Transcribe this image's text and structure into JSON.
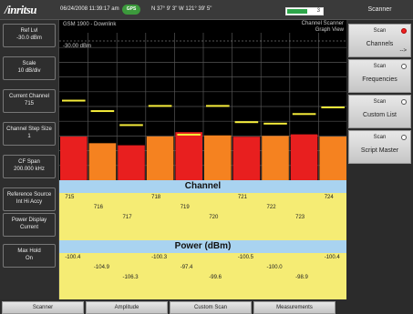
{
  "status": {
    "brand": "/inritsu",
    "datetime": "06/24/2008 11:39:17 am",
    "gps_badge": "GPS",
    "coordinates": "N 37° 9' 3\" W 121° 39' 5\"",
    "battery_level": 0.55,
    "battery_value": "3"
  },
  "graph": {
    "signal_name": "GSM 1900 - Downlink",
    "ref_level_marker": "-30.00 dBm",
    "mode_line1": "Channel Scanner",
    "mode_line2": "Graph View"
  },
  "left_panel": [
    {
      "label": "Ref Lvl",
      "value": "-30.0 dBm"
    },
    {
      "label": "Scale",
      "value": "10 dB/div"
    },
    {
      "label": "Current Channel",
      "value": "715"
    },
    {
      "label": "Channel Step Size",
      "value": "1"
    },
    {
      "label": "CF Span",
      "value": "200.000 kHz"
    },
    {
      "label": "Reference Source",
      "value": "Int Hi Accy"
    },
    {
      "label": "Power Display",
      "value": "Current"
    },
    {
      "label": "Max Hold",
      "value": "On"
    }
  ],
  "chart_data": {
    "type": "bar",
    "categories": [
      "715",
      "716",
      "717",
      "718",
      "719",
      "720",
      "721",
      "722",
      "723",
      "724"
    ],
    "values": [
      -100.4,
      -104.9,
      -106.3,
      -100.3,
      -97.4,
      -99.6,
      -100.5,
      -100.0,
      -98.9,
      -100.4
    ],
    "max_hold": [
      -75.4,
      -82.5,
      -92,
      -79,
      -98.5,
      -79,
      -90,
      -91,
      -84.5,
      -80
    ],
    "bar_colors": [
      "#e81f1f",
      "#f58220",
      "#e81f1f",
      "#f58220",
      "#e81f1f",
      "#f58220",
      "#e81f1f",
      "#f58220",
      "#e81f1f",
      "#f58220"
    ],
    "max_hold_color": "#f5ec3a",
    "ref_level": -30,
    "ylim": [
      -130,
      -30
    ],
    "grid": true
  },
  "channel_table": {
    "title": "Channel",
    "values": [
      "715",
      "716",
      "717",
      "718",
      "719",
      "720",
      "721",
      "722",
      "723",
      "724"
    ]
  },
  "power_table": {
    "title": "Power (dBm)",
    "values": [
      "-100.4",
      "-104.9",
      "-106.3",
      "-100.3",
      "-97.4",
      "-99.6",
      "-100.5",
      "-100.0",
      "-98.9",
      "-100.4"
    ]
  },
  "right_panel": {
    "title": "Scanner",
    "keys": [
      {
        "top": "Scan",
        "main": "Channels",
        "active": true,
        "arrow": "-->"
      },
      {
        "top": "Scan",
        "main": "Frequencies",
        "active": false,
        "arrow": ""
      },
      {
        "top": "Scan",
        "main": "Custom List",
        "active": false,
        "arrow": ""
      },
      {
        "top": "Scan",
        "main": "Script Master",
        "active": false,
        "arrow": ""
      }
    ]
  },
  "bottom_menu": [
    "Scanner",
    "Amplitude",
    "Custom Scan",
    "Measurements"
  ]
}
